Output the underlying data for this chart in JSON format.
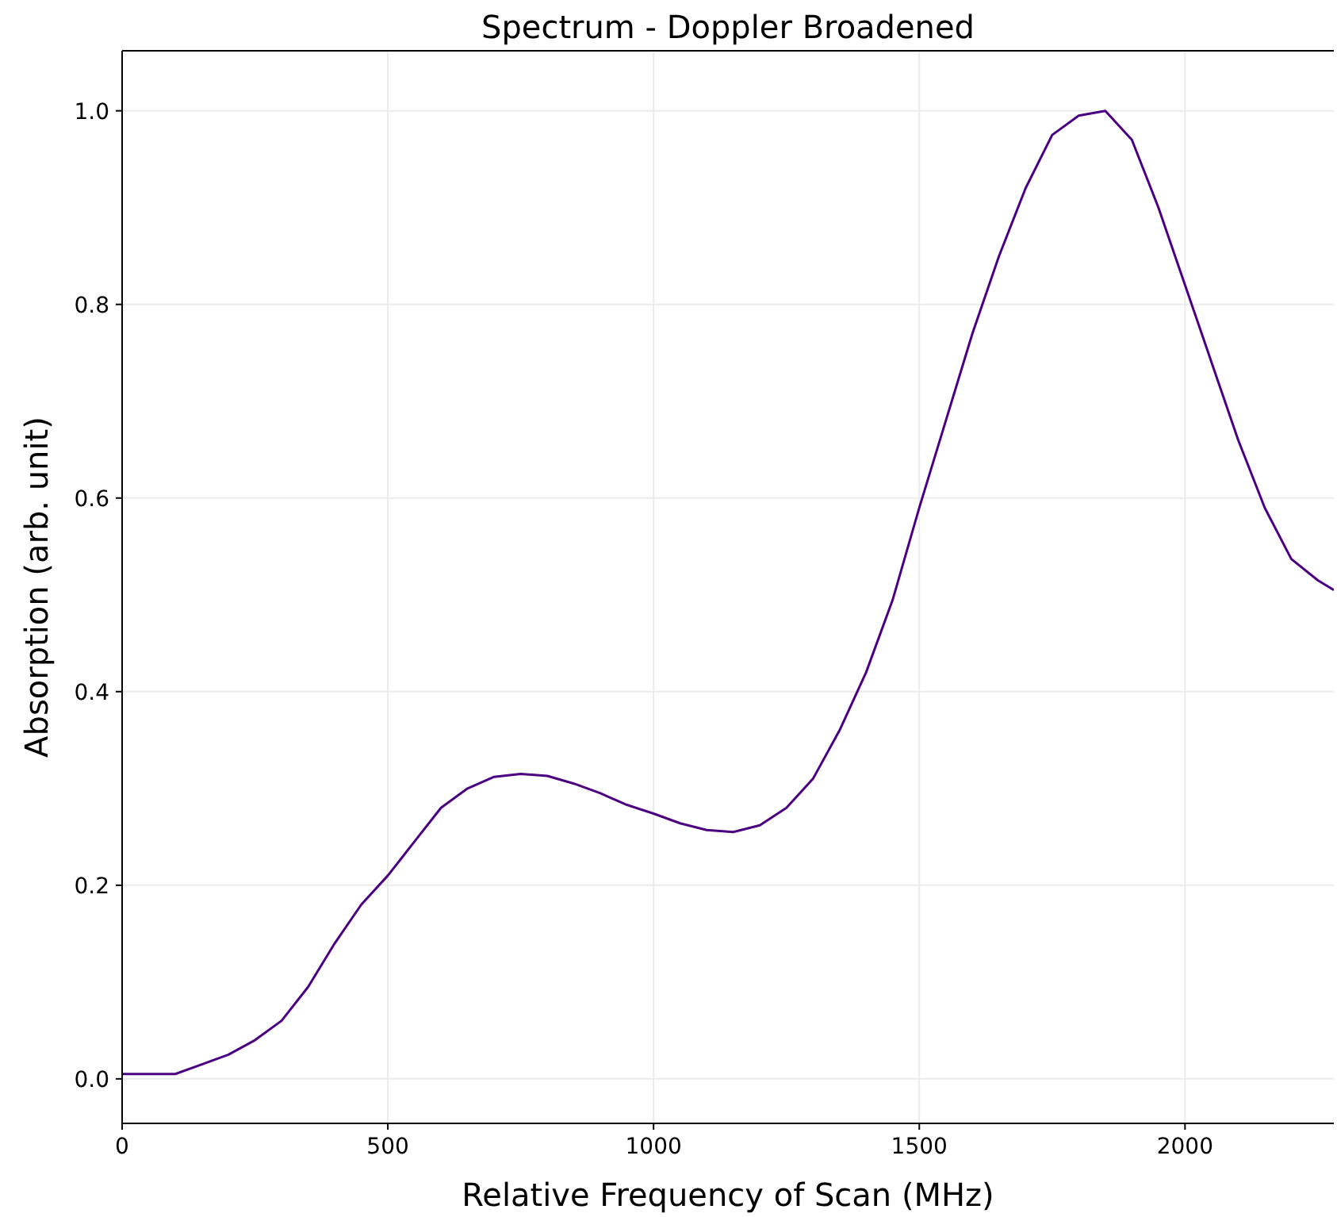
{
  "chart_data": {
    "type": "line",
    "title": "Spectrum - Doppler Broadened",
    "xlabel": "Relative Frequency of Scan (MHz)",
    "ylabel": "Absorption (arb. unit)",
    "x": [
      0,
      100,
      150,
      200,
      250,
      300,
      350,
      400,
      450,
      500,
      550,
      600,
      650,
      700,
      750,
      800,
      850,
      900,
      950,
      1000,
      1050,
      1100,
      1150,
      1200,
      1250,
      1300,
      1350,
      1400,
      1450,
      1500,
      1550,
      1600,
      1650,
      1700,
      1750,
      1800,
      1850,
      1900,
      1950,
      2000,
      2050,
      2100,
      2150,
      2200,
      2250,
      2280
    ],
    "series": [
      {
        "color": "#4b0082",
        "values": [
          0.005,
          0.005,
          0.015,
          0.025,
          0.04,
          0.06,
          0.095,
          0.14,
          0.18,
          0.21,
          0.245,
          0.28,
          0.3,
          0.312,
          0.315,
          0.313,
          0.305,
          0.295,
          0.283,
          0.274,
          0.264,
          0.257,
          0.255,
          0.262,
          0.28,
          0.31,
          0.36,
          0.42,
          0.495,
          0.59,
          0.68,
          0.77,
          0.85,
          0.92,
          0.975,
          0.995,
          1.0,
          0.97,
          0.9,
          0.82,
          0.74,
          0.66,
          0.59,
          0.537,
          0.515,
          0.505
        ]
      }
    ],
    "xlim": [
      0,
      2280
    ],
    "ylim": [
      -0.046,
      1.062
    ],
    "xticks": [
      0,
      500,
      1000,
      1500,
      2000
    ],
    "yticks": [
      {
        "value": 0,
        "label": "0.0"
      },
      {
        "value": 0.2,
        "label": "0.2"
      },
      {
        "value": 0.4,
        "label": "0.4"
      },
      {
        "value": 0.6,
        "label": "0.6"
      },
      {
        "value": 0.8,
        "label": "0.8"
      },
      {
        "value": 1,
        "label": "1.0"
      }
    ],
    "grid": true
  }
}
